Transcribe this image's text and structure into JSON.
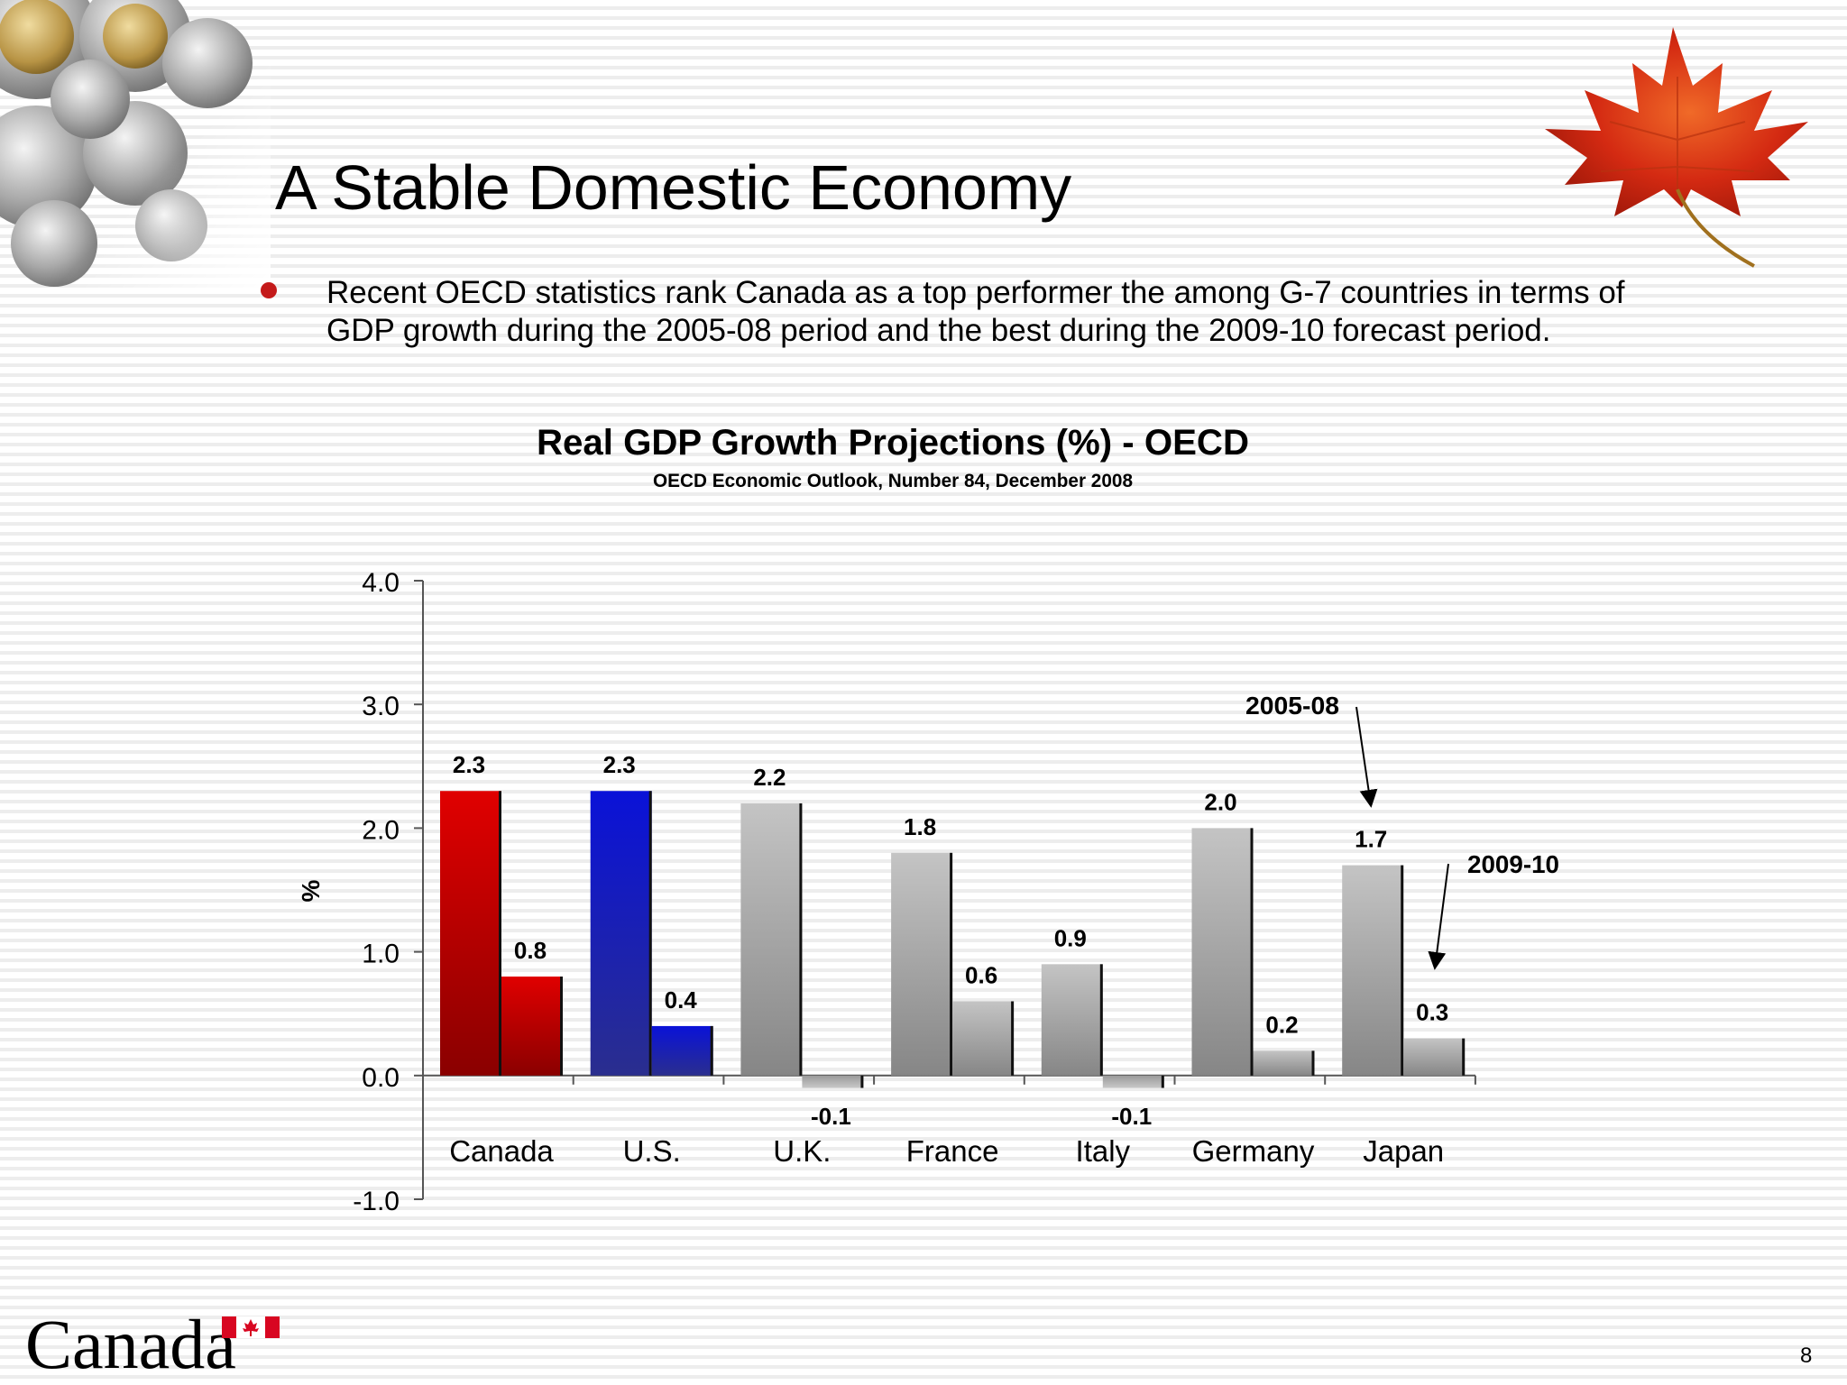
{
  "slide": {
    "title": "A Stable Domestic Economy",
    "bullet": "Recent OECD statistics rank Canada as a top performer the among G-7 countries in terms of GDP growth during the 2005-08 period and the best during the 2009-10 forecast period.",
    "page_number": "8",
    "footer_wordmark": "Canada",
    "bullet_color": "#c41a1a",
    "decorations": [
      "coins-photo",
      "maple-leaf-icon",
      "canada-flag-icon"
    ]
  },
  "chart_data": {
    "type": "bar",
    "title": "Real GDP Growth Projections (%) - OECD",
    "subtitle": "OECD Economic Outlook, Number 84, December 2008",
    "ylabel": "%",
    "ylim": [
      -1.0,
      4.0
    ],
    "yticks": [
      "-1.0",
      "0.0",
      "1.0",
      "2.0",
      "3.0",
      "4.0"
    ],
    "categories": [
      "Canada",
      "U.S.",
      "U.K.",
      "France",
      "Italy",
      "Germany",
      "Japan"
    ],
    "series": [
      {
        "name": "2005-08",
        "values": [
          2.3,
          2.3,
          2.2,
          1.8,
          0.9,
          2.0,
          1.7
        ]
      },
      {
        "name": "2009-10",
        "values": [
          0.8,
          0.4,
          -0.1,
          0.6,
          -0.1,
          0.2,
          0.3
        ]
      }
    ],
    "value_labels": [
      [
        "2.3",
        "2.3",
        "2.2",
        "1.8",
        "0.9",
        "2.0",
        "1.7"
      ],
      [
        "0.8",
        "0.4",
        "-0.1",
        "0.6",
        "-0.1",
        "0.2",
        "0.3"
      ]
    ],
    "colors": {
      "canada": "#d40000",
      "us": "#0a12c8",
      "others": "#b0b0b0"
    },
    "grid": false,
    "legend": "none (series names shown as arrow annotations near Japan)"
  }
}
